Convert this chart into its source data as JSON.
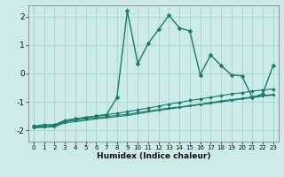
{
  "xlabel": "Humidex (Indice chaleur)",
  "bg_color": "#cceae8",
  "line_color": "#1a7a6e",
  "grid_color": "#aad4d0",
  "xlim": [
    -0.5,
    23.5
  ],
  "ylim": [
    -2.4,
    2.4
  ],
  "xticks": [
    0,
    1,
    2,
    3,
    4,
    5,
    6,
    7,
    8,
    9,
    10,
    11,
    12,
    13,
    14,
    15,
    16,
    17,
    18,
    19,
    20,
    21,
    22,
    23
  ],
  "yticks": [
    -2,
    -1,
    0,
    1,
    2
  ],
  "s1_x": [
    0,
    1,
    2,
    3,
    4,
    5,
    6,
    7,
    8,
    9,
    10,
    11,
    12,
    13,
    14,
    15,
    16,
    17,
    18,
    19,
    20,
    21,
    22,
    23
  ],
  "s1_y": [
    -1.85,
    -1.8,
    -1.8,
    -1.65,
    -1.6,
    -1.55,
    -1.5,
    -1.45,
    -1.4,
    -1.35,
    -1.28,
    -1.22,
    -1.15,
    -1.08,
    -1.02,
    -0.95,
    -0.9,
    -0.84,
    -0.78,
    -0.72,
    -0.68,
    -0.62,
    -0.58,
    -0.55
  ],
  "s2_x": [
    0,
    1,
    2,
    3,
    4,
    5,
    6,
    7,
    8,
    9,
    10,
    11,
    12,
    13,
    14,
    15,
    16,
    17,
    18,
    19,
    20,
    21,
    22,
    23
  ],
  "s2_y": [
    -1.9,
    -1.88,
    -1.85,
    -1.7,
    -1.65,
    -1.6,
    -1.56,
    -1.52,
    -1.48,
    -1.44,
    -1.38,
    -1.32,
    -1.27,
    -1.22,
    -1.18,
    -1.13,
    -1.08,
    -1.02,
    -0.97,
    -0.92,
    -0.88,
    -0.82,
    -0.78,
    -0.74
  ],
  "s3_x": [
    0,
    1,
    2,
    3,
    4,
    5,
    6,
    7,
    8,
    9,
    10,
    11,
    12,
    13,
    14,
    15,
    16,
    17,
    18,
    19,
    20,
    21,
    22,
    23
  ],
  "s3_y": [
    -1.92,
    -1.9,
    -1.88,
    -1.74,
    -1.7,
    -1.65,
    -1.6,
    -1.56,
    -1.52,
    -1.48,
    -1.42,
    -1.36,
    -1.3,
    -1.25,
    -1.2,
    -1.15,
    -1.1,
    -1.05,
    -1.0,
    -0.95,
    -0.9,
    -0.85,
    -0.8,
    -0.76
  ],
  "s4_x": [
    0,
    1,
    2,
    3,
    4,
    5,
    6,
    7,
    8,
    9,
    10,
    11,
    12,
    13,
    14,
    15,
    16,
    17,
    18,
    19,
    20,
    21,
    22,
    23
  ],
  "s4_y": [
    -1.88,
    -1.85,
    -1.83,
    -1.68,
    -1.6,
    -1.55,
    -1.5,
    -1.45,
    -0.85,
    2.2,
    0.35,
    1.05,
    1.55,
    2.05,
    1.6,
    1.5,
    -0.05,
    0.65,
    0.28,
    -0.05,
    -0.08,
    -0.85,
    -0.72,
    0.28
  ]
}
